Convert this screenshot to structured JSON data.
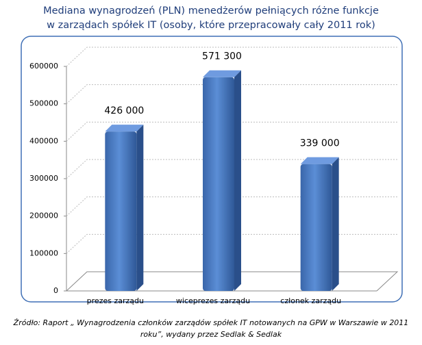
{
  "chart_data": {
    "type": "bar",
    "title": "Mediana wynagrodzeń (PLN) menedżerów pełniących różne funkcje w zarządach spółek IT (osoby, które przepracowały cały 2011 rok)",
    "categories": [
      "prezes zarządu",
      "wiceprezes zarządu",
      "członek zarządu"
    ],
    "values": [
      426000,
      571300,
      339000
    ],
    "value_labels": [
      "426 000",
      "571 300",
      "339 000"
    ],
    "color": "#4a7cc4",
    "ylim": [
      0,
      600000
    ],
    "yticks": [
      0,
      100000,
      200000,
      300000,
      400000,
      500000,
      600000
    ],
    "grid": true,
    "source": "Źródło: Raport „ Wynagrodzenia członków zarządów spółek IT notowanych na GPW w Warszawie w 2011 roku”, wydany przez Sedlak & Sedlak"
  }
}
